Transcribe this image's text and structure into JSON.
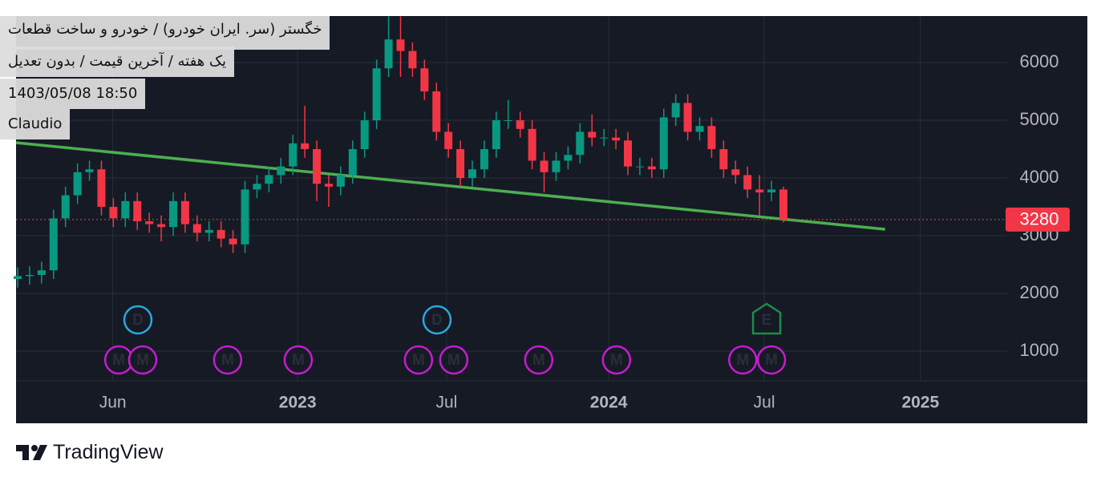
{
  "chart_data": {
    "type": "candlestick",
    "title_lines": [
      "خگستر (سر. ایران خودرو) / خودرو و ساخت قطعات",
      "یک هفته / آخرین قیمت / بدون تعدیل",
      "1403/05/08 18:50",
      "Claudio"
    ],
    "brand": "TradingView",
    "x": [
      0,
      2,
      4,
      6,
      8,
      10,
      12,
      14,
      16,
      18,
      20,
      22,
      24,
      26,
      28,
      30,
      32,
      34,
      36,
      38,
      40,
      42,
      44,
      46,
      48,
      50,
      52,
      54,
      56,
      58,
      60,
      62,
      64,
      66,
      68,
      70,
      72,
      74,
      76,
      78,
      80,
      82,
      84,
      86,
      88,
      90,
      92,
      94,
      96,
      98,
      100,
      102,
      104,
      106,
      108,
      110,
      112,
      114,
      116,
      118,
      120,
      122,
      124,
      126,
      128
    ],
    "open": [
      2250,
      2300,
      2320,
      2400,
      3300,
      3700,
      4100,
      4150,
      3500,
      3300,
      3600,
      3250,
      3200,
      3150,
      3600,
      3200,
      3050,
      3100,
      2950,
      2850,
      3800,
      3900,
      4050,
      4200,
      4600,
      4500,
      3900,
      3850,
      4050,
      4500,
      5000,
      5900,
      6400,
      6200,
      5900,
      5500,
      4800,
      4500,
      4000,
      4150,
      4500,
      5000,
      5000,
      4850,
      4300,
      4100,
      4300,
      4400,
      4800,
      4700,
      4700,
      4650,
      4200,
      4200,
      4150,
      5050,
      5300,
      4800,
      4900,
      4500,
      4150,
      4050,
      3800,
      3750,
      3800
    ],
    "high": [
      2450,
      2470,
      2550,
      3450,
      3850,
      4250,
      4300,
      4300,
      3650,
      3750,
      3750,
      3400,
      3350,
      3750,
      3750,
      3350,
      3250,
      3250,
      3100,
      3950,
      4050,
      4200,
      4350,
      4750,
      5250,
      4650,
      4050,
      4200,
      4650,
      5150,
      6050,
      6800,
      6800,
      6350,
      6050,
      5650,
      4950,
      4650,
      4300,
      4650,
      5150,
      5350,
      5150,
      5000,
      4450,
      4450,
      4550,
      4950,
      5100,
      4850,
      4850,
      4800,
      4350,
      4350,
      5200,
      5450,
      5450,
      5050,
      5050,
      4650,
      4300,
      4200,
      4050,
      3950,
      3850
    ],
    "low": [
      2100,
      2150,
      2170,
      2250,
      3150,
      3550,
      3950,
      3350,
      3150,
      3150,
      3100,
      3050,
      2900,
      3000,
      3050,
      2900,
      2900,
      2800,
      2700,
      2700,
      3650,
      3750,
      3900,
      4050,
      4350,
      3600,
      3500,
      3700,
      3900,
      4350,
      4850,
      5750,
      5750,
      5750,
      5350,
      4650,
      4350,
      3850,
      3850,
      4000,
      4350,
      4850,
      4700,
      4150,
      3750,
      3950,
      4150,
      4250,
      4550,
      4550,
      4500,
      4050,
      4050,
      4000,
      4000,
      4900,
      4650,
      4650,
      4350,
      4000,
      3900,
      3650,
      3350,
      3600,
      3230
    ],
    "close": [
      2300,
      2320,
      2400,
      3300,
      3700,
      4100,
      4150,
      3500,
      3300,
      3600,
      3250,
      3200,
      3150,
      3600,
      3200,
      3050,
      3100,
      2950,
      2850,
      3800,
      3900,
      4050,
      4200,
      4600,
      4500,
      3900,
      3850,
      4050,
      4500,
      5000,
      5900,
      6400,
      6200,
      5900,
      5500,
      4800,
      4500,
      4000,
      4150,
      4500,
      5000,
      5000,
      4850,
      4300,
      4100,
      4300,
      4400,
      4800,
      4700,
      4700,
      4650,
      4200,
      4200,
      4150,
      5050,
      5300,
      4800,
      4900,
      4500,
      4150,
      4050,
      3800,
      3750,
      3800,
      3280
    ],
    "up_color": "#089981",
    "down_color": "#f23645",
    "last_price": 3280,
    "trendline": {
      "x": [
        -0.27,
        145.0
      ],
      "values": [
        4611,
        3111
      ],
      "color": "#4caf50"
    },
    "events": [
      {
        "label": "D",
        "color": "#2aa7e0",
        "x": [
          20.1,
          70.1
        ]
      },
      {
        "label": "E",
        "color": "#1f8b4c",
        "x": [
          125.2
        ]
      },
      {
        "label": "M",
        "color": "#c41ccf",
        "x": [
          16.9,
          20.9,
          35.1,
          46.9,
          67.0,
          72.9,
          87.1,
          100.1,
          121.2,
          126.0
        ]
      }
    ],
    "xlim": [
      -0.27,
      165.4
    ],
    "xticks": [
      {
        "value": 15.9,
        "label": "Jun"
      },
      {
        "value": 46.8,
        "label": "2023"
      },
      {
        "value": 71.7,
        "label": "Jul"
      },
      {
        "value": 98.8,
        "label": "2024"
      },
      {
        "value": 124.8,
        "label": "Jul"
      },
      {
        "value": 150.9,
        "label": "2025"
      }
    ],
    "ylim": [
      486,
      6806
    ],
    "yticks": [
      1000,
      2000,
      3000,
      4000,
      5000,
      6000
    ],
    "grid": true
  }
}
